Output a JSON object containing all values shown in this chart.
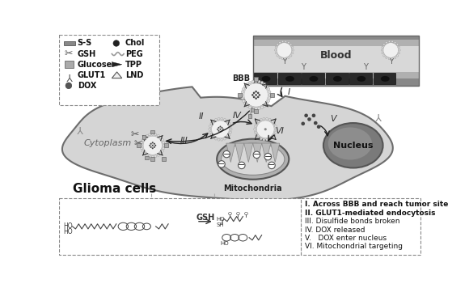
{
  "bg_color": "#ffffff",
  "steps": [
    "I. Across BBB and reach tumor site",
    "II. GLUT1-mediated endocytosis",
    "III. Disulfide bonds broken",
    "IV. DOX released",
    "V.   DOX enter nucleus",
    "VI. Mitochondrial targeting"
  ],
  "cell_label": "Glioma cells",
  "cytoplasm_label": "Cytoplasm",
  "blood_label": "Blood",
  "bbb_label": "BBB",
  "nucleus_label": "Nucleus",
  "mitochondria_label": "Mitochondria",
  "gsh_label": "GSH",
  "roman_I": "I",
  "roman_II": "II",
  "roman_III": "III",
  "roman_IV": "IV",
  "roman_V": "V",
  "roman_VI": "VI",
  "cell_fc": "#d0d0d0",
  "cell_ec": "#555555",
  "blood_fc": "#c0c0c0",
  "blood_inner_fc": "#e0e0e0",
  "bbb_fc": "#333333",
  "nucleus_fc": "#888888",
  "nucleus_inner_fc": "#aaaaaa",
  "mito_outer_fc": "#bbbbbb",
  "mito_inner_fc": "#d8d8d8",
  "bead_fc": "#e0e0e0",
  "bead_ec": "#888888",
  "dox_fc": "#555555",
  "glucose_fc": "#aaaaaa",
  "legend_box_ec": "#888888",
  "steps_box_ec": "#888888",
  "chem_box_ec": "#888888"
}
